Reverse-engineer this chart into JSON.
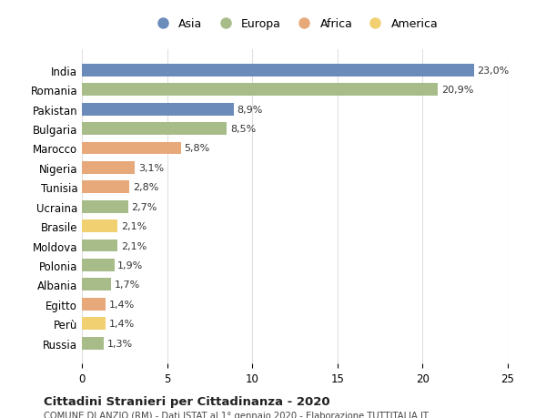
{
  "countries": [
    "India",
    "Romania",
    "Pakistan",
    "Bulgaria",
    "Marocco",
    "Nigeria",
    "Tunisia",
    "Ucraina",
    "Brasile",
    "Moldova",
    "Polonia",
    "Albania",
    "Egitto",
    "Perù",
    "Russia"
  ],
  "values": [
    23.0,
    20.9,
    8.9,
    8.5,
    5.8,
    3.1,
    2.8,
    2.7,
    2.1,
    2.1,
    1.9,
    1.7,
    1.4,
    1.4,
    1.3
  ],
  "labels": [
    "23,0%",
    "20,9%",
    "8,9%",
    "8,5%",
    "5,8%",
    "3,1%",
    "2,8%",
    "2,7%",
    "2,1%",
    "2,1%",
    "1,9%",
    "1,7%",
    "1,4%",
    "1,4%",
    "1,3%"
  ],
  "continents": [
    "Asia",
    "Europa",
    "Asia",
    "Europa",
    "Africa",
    "Africa",
    "Africa",
    "Europa",
    "America",
    "Europa",
    "Europa",
    "Europa",
    "Africa",
    "America",
    "Europa"
  ],
  "legend_colors": {
    "Asia": "#6b8cba",
    "Europa": "#a8bc8a",
    "Africa": "#e8a97a",
    "America": "#f0d070"
  },
  "bar_colors": [
    "#6b8cba",
    "#a8bc8a",
    "#6b8cba",
    "#a8bc8a",
    "#e8a97a",
    "#e8a97a",
    "#e8a97a",
    "#a8bc8a",
    "#f0d070",
    "#a8bc8a",
    "#a8bc8a",
    "#a8bc8a",
    "#e8a97a",
    "#f0d070",
    "#a8bc8a"
  ],
  "title": "Cittadini Stranieri per Cittadinanza - 2020",
  "subtitle": "COMUNE DI ANZIO (RM) - Dati ISTAT al 1° gennaio 2020 - Elaborazione TUTTITALIA.IT",
  "xlim": [
    0,
    25
  ],
  "xticks": [
    0,
    5,
    10,
    15,
    20,
    25
  ],
  "background_color": "#ffffff",
  "grid_color": "#e0e0e0",
  "legend_order": [
    "Asia",
    "Europa",
    "Africa",
    "America"
  ]
}
